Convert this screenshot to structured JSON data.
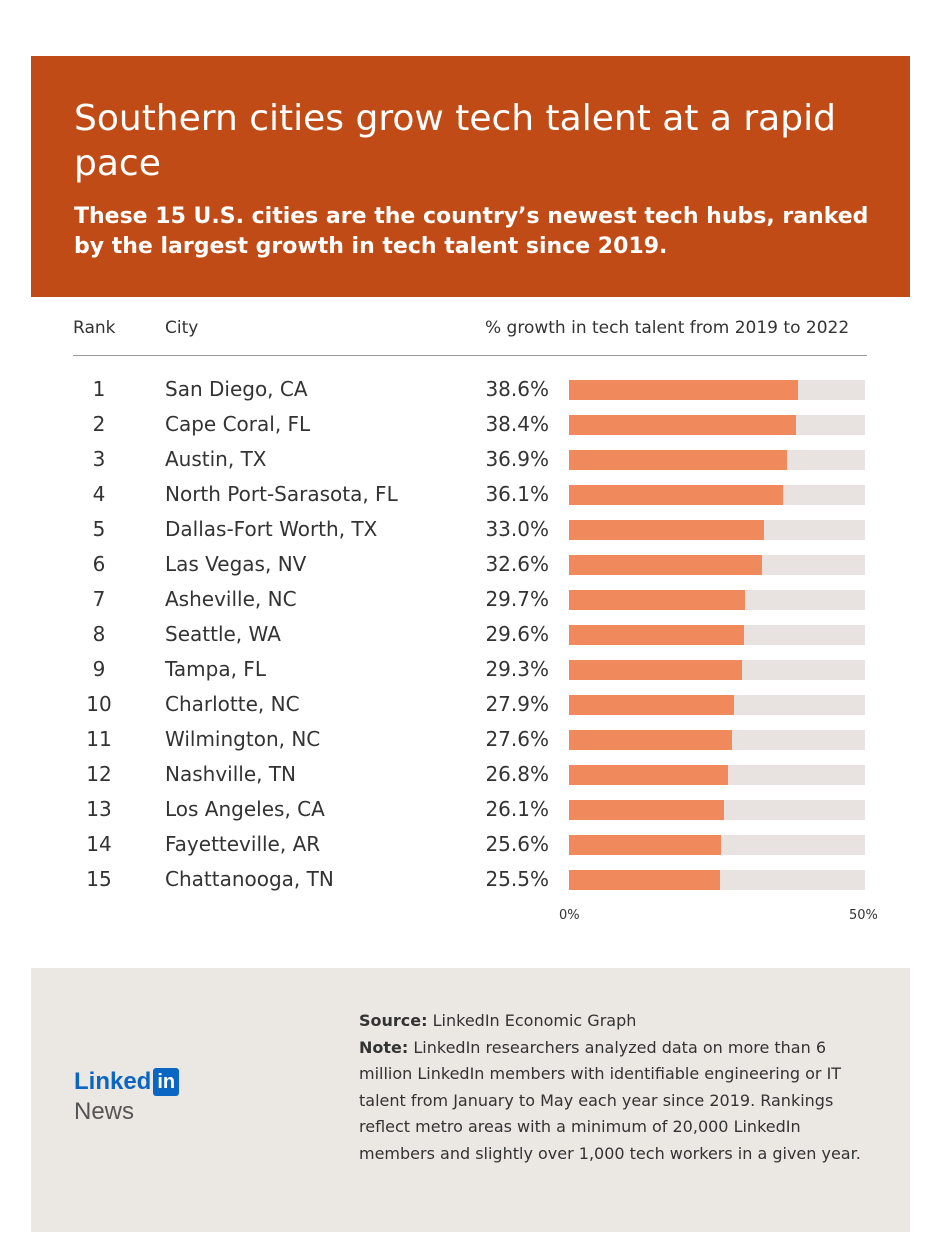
{
  "header": {
    "title": "Southern cities grow tech talent at a rapid pace",
    "subtitle": "These 15 U.S. cities are the country’s newest tech hubs, ranked by the largest growth in tech talent since 2019."
  },
  "columns": {
    "rank": "Rank",
    "city": "City",
    "growth": "% growth in tech talent from 2019 to 2022"
  },
  "chart_data": {
    "type": "bar",
    "orientation": "horizontal",
    "title": "Southern cities grow tech talent at a rapid pace",
    "xlabel": "% growth in tech talent from 2019 to 2022",
    "xlim": [
      0,
      50
    ],
    "axis_labels": {
      "min": "0%",
      "max": "50%"
    },
    "rows": [
      {
        "rank": "1",
        "city": "San Diego, CA",
        "value": 38.6,
        "label": "38.6%"
      },
      {
        "rank": "2",
        "city": "Cape Coral, FL",
        "value": 38.4,
        "label": "38.4%"
      },
      {
        "rank": "3",
        "city": "Austin, TX",
        "value": 36.9,
        "label": "36.9%"
      },
      {
        "rank": "4",
        "city": "North Port-Sarasota, FL",
        "value": 36.1,
        "label": "36.1%"
      },
      {
        "rank": "5",
        "city": "Dallas-Fort Worth, TX",
        "value": 33.0,
        "label": "33.0%"
      },
      {
        "rank": "6",
        "city": "Las Vegas, NV",
        "value": 32.6,
        "label": "32.6%"
      },
      {
        "rank": "7",
        "city": "Asheville, NC",
        "value": 29.7,
        "label": "29.7%"
      },
      {
        "rank": "8",
        "city": "Seattle, WA",
        "value": 29.6,
        "label": "29.6%"
      },
      {
        "rank": "9",
        "city": "Tampa, FL",
        "value": 29.3,
        "label": "29.3%"
      },
      {
        "rank": "10",
        "city": "Charlotte, NC",
        "value": 27.9,
        "label": "27.9%"
      },
      {
        "rank": "11",
        "city": "Wilmington, NC",
        "value": 27.6,
        "label": "27.6%"
      },
      {
        "rank": "12",
        "city": "Nashville, TN",
        "value": 26.8,
        "label": "26.8%"
      },
      {
        "rank": "13",
        "city": "Los Angeles, CA",
        "value": 26.1,
        "label": "26.1%"
      },
      {
        "rank": "14",
        "city": "Fayetteville, AR",
        "value": 25.6,
        "label": "25.6%"
      },
      {
        "rank": "15",
        "city": "Chattanooga, TN",
        "value": 25.5,
        "label": "25.5%"
      }
    ]
  },
  "colors": {
    "header_bg": "#c04b16",
    "bar_fill": "#f08a5d",
    "bar_track": "#e8e3e0",
    "footer_bg": "#ebe7e3",
    "brand_blue": "#0a66c2"
  },
  "footer": {
    "logo_word": "Linked",
    "logo_in": "in",
    "logo_news": "News",
    "source_label": "Source:",
    "source_text": " LinkedIn Economic Graph",
    "note_label": "Note:",
    "note_text": " LinkedIn researchers analyzed data on more than 6 million LinkedIn members with identifiable engineering or IT talent from January to May each year since 2019. Rankings reflect metro areas with a minimum of 20,000 LinkedIn members and slightly over 1,000 tech workers in a given year."
  }
}
